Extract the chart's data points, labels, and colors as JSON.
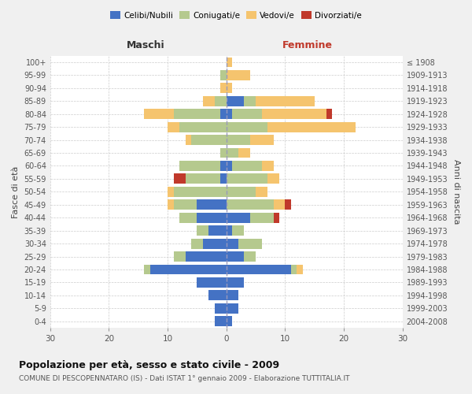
{
  "age_groups": [
    "0-4",
    "5-9",
    "10-14",
    "15-19",
    "20-24",
    "25-29",
    "30-34",
    "35-39",
    "40-44",
    "45-49",
    "50-54",
    "55-59",
    "60-64",
    "65-69",
    "70-74",
    "75-79",
    "80-84",
    "85-89",
    "90-94",
    "95-99",
    "100+"
  ],
  "birth_years": [
    "2004-2008",
    "1999-2003",
    "1994-1998",
    "1989-1993",
    "1984-1988",
    "1979-1983",
    "1974-1978",
    "1969-1973",
    "1964-1968",
    "1959-1963",
    "1954-1958",
    "1949-1953",
    "1944-1948",
    "1939-1943",
    "1934-1938",
    "1929-1933",
    "1924-1928",
    "1919-1923",
    "1914-1918",
    "1909-1913",
    "≤ 1908"
  ],
  "male": {
    "celibi": [
      2,
      2,
      3,
      5,
      13,
      7,
      4,
      3,
      5,
      5,
      0,
      1,
      1,
      0,
      0,
      0,
      1,
      0,
      0,
      0,
      0
    ],
    "coniugati": [
      0,
      0,
      0,
      0,
      1,
      2,
      2,
      2,
      3,
      4,
      9,
      6,
      7,
      1,
      6,
      8,
      8,
      2,
      0,
      1,
      0
    ],
    "vedovi": [
      0,
      0,
      0,
      0,
      0,
      0,
      0,
      0,
      0,
      1,
      1,
      0,
      0,
      0,
      1,
      2,
      5,
      2,
      1,
      0,
      0
    ],
    "divorziati": [
      0,
      0,
      0,
      0,
      0,
      0,
      0,
      0,
      0,
      0,
      0,
      2,
      0,
      0,
      0,
      0,
      0,
      0,
      0,
      0,
      0
    ]
  },
  "female": {
    "nubili": [
      1,
      2,
      2,
      3,
      11,
      3,
      2,
      1,
      4,
      0,
      0,
      0,
      1,
      0,
      0,
      0,
      1,
      3,
      0,
      0,
      0
    ],
    "coniugate": [
      0,
      0,
      0,
      0,
      1,
      2,
      4,
      2,
      4,
      8,
      5,
      7,
      5,
      2,
      4,
      7,
      5,
      2,
      0,
      0,
      0
    ],
    "vedove": [
      0,
      0,
      0,
      0,
      1,
      0,
      0,
      0,
      0,
      2,
      2,
      2,
      2,
      2,
      4,
      15,
      11,
      10,
      1,
      4,
      1
    ],
    "divorziate": [
      0,
      0,
      0,
      0,
      0,
      0,
      0,
      0,
      1,
      1,
      0,
      0,
      0,
      0,
      0,
      0,
      1,
      0,
      0,
      0,
      0
    ]
  },
  "colors": {
    "celibi": "#4472c4",
    "coniugati": "#b5c98e",
    "vedovi": "#f5c46e",
    "divorziati": "#c0392b"
  },
  "xlim": 30,
  "title": "Popolazione per età, sesso e stato civile - 2009",
  "subtitle": "COMUNE DI PESCOPENNATARO (IS) - Dati ISTAT 1° gennaio 2009 - Elaborazione TUTTITALIA.IT",
  "ylabel_left": "Fasce di età",
  "ylabel_right": "Anni di nascita",
  "xlabel_left": "Maschi",
  "xlabel_right": "Femmine",
  "bg_color": "#f0f0f0",
  "plot_bg": "#ffffff"
}
